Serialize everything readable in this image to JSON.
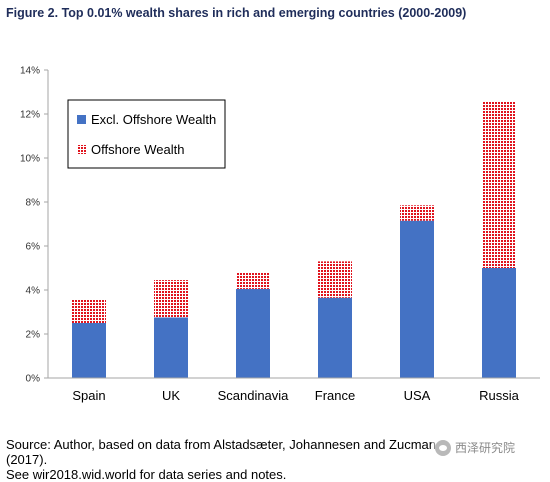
{
  "figure": {
    "title": "Figure 2. Top 0.01% wealth shares in rich and emerging countries (2000-2009)",
    "source_line1": "Source: Author, based on data from Alstadsæter, Johannesen and Zucman (2017).",
    "source_line2": "See wir2018.wid.world for data series and notes.",
    "watermark": "西泽研究院"
  },
  "colors": {
    "excl": "#4472C4",
    "offshore_bg": "#ffffff",
    "offshore_dot": "#E0141E",
    "axis": "#a6a6a6",
    "text": "#000000"
  },
  "chart_data": {
    "type": "bar",
    "stacked": true,
    "categories": [
      "Spain",
      "UK",
      "Scandinavia",
      "France",
      "USA",
      "Russia"
    ],
    "series": [
      {
        "name": "Excl. Offshore Wealth",
        "values": [
          2.5,
          2.75,
          4.05,
          3.65,
          7.15,
          5.0
        ]
      },
      {
        "name": "Offshore Wealth",
        "values": [
          1.05,
          1.7,
          0.75,
          1.65,
          0.7,
          7.55
        ]
      }
    ],
    "ylim": [
      0,
      14
    ],
    "yticks": [
      "0%",
      "2%",
      "4%",
      "6%",
      "8%",
      "10%",
      "12%",
      "14%"
    ],
    "ytick_values": [
      0,
      2,
      4,
      6,
      8,
      10,
      12,
      14
    ],
    "xlabel": "",
    "ylabel": "",
    "grid": false,
    "legend_position": "top-left"
  }
}
